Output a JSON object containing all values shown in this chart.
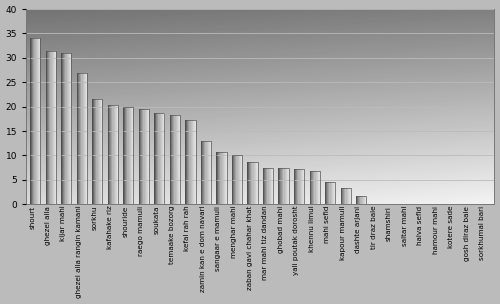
{
  "categories": [
    "shourt",
    "ghezel alla",
    "kijar mahi",
    "ghezel alla rangin kamani",
    "sorkhu",
    "kafahake riz",
    "shouride",
    "raego mamuli",
    "soukata",
    "temaake bozorg",
    "kefal rah rah",
    "zamin kan e dom navari",
    "sangaar e mamuli",
    "menghar mahi",
    "zaban gavi chahar khat",
    "mar mahi tiz dandan",
    "ghobad mahi",
    "yali poutak dorosht",
    "khennu limui",
    "mahi sefid",
    "kapour mamuli",
    "dashte arjani",
    "tir draz bale",
    "shamshiri",
    "saltar mahi",
    "halva sefid",
    "hamour mahi",
    "kotere sade",
    "gosh diraz bale",
    "sorkhumal bari"
  ],
  "values": [
    34.0,
    31.5,
    31.0,
    27.0,
    21.5,
    20.4,
    20.0,
    19.5,
    18.8,
    18.3,
    17.2,
    13.0,
    10.8,
    10.0,
    8.7,
    7.5,
    7.5,
    7.3,
    6.9,
    4.5,
    3.3,
    1.7,
    0.0,
    0.0,
    0.0,
    0.0,
    0.0,
    0.0,
    0.0,
    0.0
  ],
  "ylim": [
    0,
    40
  ],
  "yticks": [
    0,
    5,
    10,
    15,
    20,
    25,
    30,
    35,
    40
  ],
  "xlabel_fontsize": 5.2,
  "tick_fontsize": 6.5,
  "bar_width": 0.65,
  "bg_top_color": "#888888",
  "bg_bottom_color": "#e0e0e0",
  "bg_left_dark": "#999999",
  "bg_right_light": "#f0f0f0",
  "bar_dark": "#444444",
  "bar_light": "#cccccc",
  "grid_color": "#aaaaaa",
  "border_color": "#666666"
}
